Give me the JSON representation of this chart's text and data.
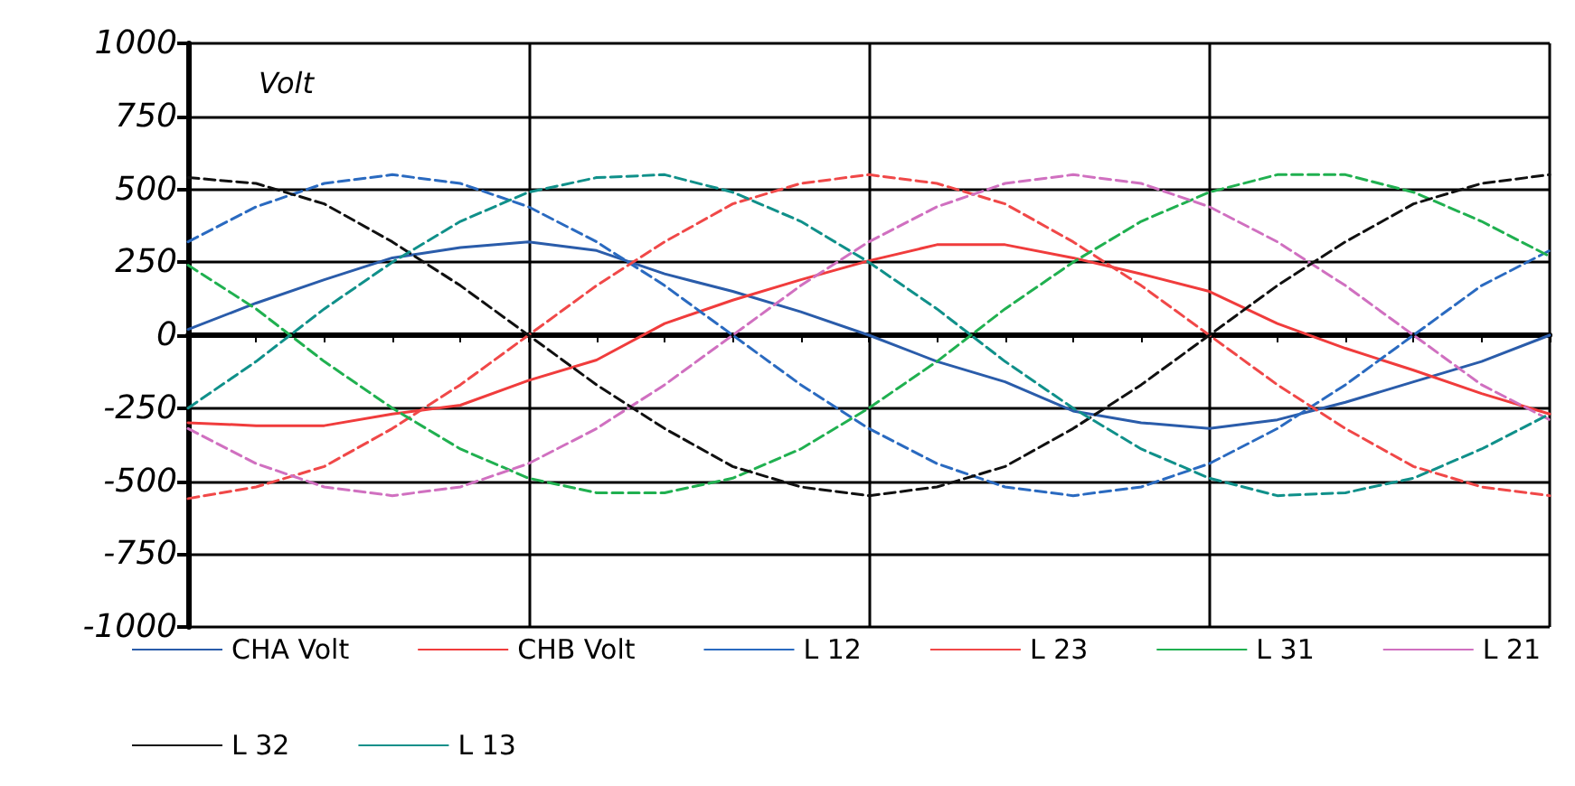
{
  "chart_data": {
    "type": "line",
    "ylabel": "Volt",
    "categories": [
      null,
      null,
      null,
      null,
      null,
      null,
      null,
      null,
      null,
      null,
      null,
      null,
      null,
      null,
      null,
      null,
      null,
      null,
      null,
      null,
      null
    ],
    "ylim": [
      -1000,
      1000
    ],
    "yticks": [
      -1000,
      -750,
      -500,
      -250,
      0,
      250,
      500,
      750,
      1000
    ],
    "grid": true,
    "legend": "bottom",
    "marker": "none",
    "tick_labels": "y",
    "series": [
      {
        "name": "CHA Volt",
        "color": "#2a5caa",
        "line_style": "solid",
        "values": [
          20,
          110,
          190,
          265,
          300,
          320,
          290,
          210,
          150,
          80,
          0,
          -90,
          -160,
          -260,
          -300,
          -320,
          -290,
          -230,
          -160,
          -90,
          0
        ]
      },
      {
        "name": "CHB Volt",
        "color": "#f03c3c",
        "line_style": "solid",
        "values": [
          -300,
          -310,
          -310,
          -270,
          -240,
          -155,
          -85,
          40,
          120,
          190,
          255,
          310,
          310,
          265,
          210,
          150,
          40,
          -45,
          -120,
          -200,
          -270
        ]
      },
      {
        "name": "L 12",
        "color": "#2a6ac0",
        "line_style": "dashed",
        "values": [
          320,
          440,
          520,
          550,
          520,
          440,
          320,
          170,
          0,
          -170,
          -320,
          -440,
          -520,
          -550,
          -520,
          -440,
          -320,
          -170,
          0,
          170,
          290
        ]
      },
      {
        "name": "L 23",
        "color": "#f04848",
        "line_style": "dashed",
        "values": [
          -560,
          -520,
          -450,
          -320,
          -170,
          0,
          170,
          320,
          450,
          520,
          550,
          520,
          450,
          320,
          170,
          0,
          -170,
          -320,
          -450,
          -520,
          -550
        ]
      },
      {
        "name": "L 31",
        "color": "#20b050",
        "line_style": "dashed",
        "values": [
          240,
          90,
          -90,
          -250,
          -390,
          -490,
          -540,
          -540,
          -490,
          -390,
          -250,
          -90,
          90,
          250,
          390,
          490,
          550,
          550,
          490,
          390,
          270
        ]
      },
      {
        "name": "L 21",
        "color": "#d070c0",
        "line_style": "dashed",
        "values": [
          -320,
          -440,
          -520,
          -550,
          -520,
          -440,
          -320,
          -170,
          0,
          170,
          320,
          440,
          520,
          550,
          520,
          440,
          320,
          170,
          0,
          -170,
          -290
        ]
      },
      {
        "name": "L 32",
        "color": "#101010",
        "line_style": "dashed",
        "values": [
          540,
          520,
          450,
          320,
          170,
          0,
          -170,
          -320,
          -450,
          -520,
          -550,
          -520,
          -450,
          -320,
          -170,
          0,
          170,
          320,
          450,
          520,
          550
        ]
      },
      {
        "name": "L 13",
        "color": "#10908a",
        "line_style": "dashed",
        "values": [
          -250,
          -90,
          90,
          250,
          390,
          490,
          540,
          550,
          490,
          390,
          250,
          90,
          -90,
          -250,
          -390,
          -490,
          -550,
          -540,
          -490,
          -390,
          -270
        ]
      }
    ]
  }
}
